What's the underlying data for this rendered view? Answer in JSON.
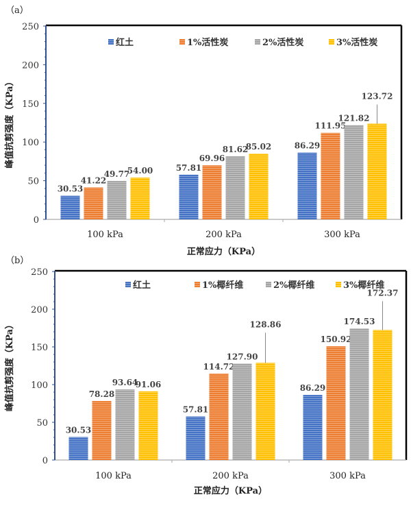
{
  "colors": {
    "红土": "#4472C4",
    "1%": "#ED7D31",
    "2%": "#A5A5A5",
    "3%": "#FFC000"
  },
  "chart_data": [
    {
      "type": "bar",
      "panel_label": "（a）",
      "categories": [
        "100 kPa",
        "200 kPa",
        "300 kPa"
      ],
      "series": [
        {
          "name": "红土",
          "values": [
            30.53,
            57.81,
            86.29
          ]
        },
        {
          "name": "1%活性炭",
          "values": [
            41.22,
            69.96,
            111.95
          ]
        },
        {
          "name": "2%活性炭",
          "values": [
            49.77,
            81.62,
            121.82
          ]
        },
        {
          "name": "3%活性炭",
          "values": [
            54.0,
            85.02,
            123.72
          ]
        }
      ],
      "data_labels": [
        [
          "30.53",
          "57.81",
          "86.29"
        ],
        [
          "41.22",
          "69.96",
          "111.95"
        ],
        [
          "49.77",
          "81.62",
          "121.82"
        ],
        [
          "54.00",
          "85.02",
          "123.72"
        ]
      ],
      "xlabel": "正常应力（KPa）",
      "ylabel": "峰值抗剪强度（KPa）",
      "ylim": [
        0,
        250
      ],
      "yticks": [
        "0",
        "50",
        "100",
        "150",
        "200",
        "250"
      ],
      "legend": "top-center",
      "grid": false
    },
    {
      "type": "bar",
      "panel_label": "（b）",
      "categories": [
        "100 kPa",
        "200 kPa",
        "300 kPa"
      ],
      "series": [
        {
          "name": "红土",
          "values": [
            30.53,
            57.81,
            86.29
          ]
        },
        {
          "name": "1%椰纤维",
          "values": [
            78.28,
            114.72,
            150.92
          ]
        },
        {
          "name": "2%椰纤维",
          "values": [
            93.64,
            127.9,
            174.53
          ]
        },
        {
          "name": "3%椰纤维",
          "values": [
            91.06,
            128.86,
            172.37
          ]
        }
      ],
      "data_labels": [
        [
          "30.53",
          "57.81",
          "86.29"
        ],
        [
          "78.28",
          "114.72",
          "150.92"
        ],
        [
          "93.64",
          "127.90",
          "174.53"
        ],
        [
          "91.06",
          "128.86",
          "172.37"
        ]
      ],
      "xlabel": "正常应力（KPa）",
      "ylabel": "峰值抗剪强度（KPa）",
      "ylim": [
        0,
        250
      ],
      "yticks": [
        "0",
        "50",
        "100",
        "150",
        "200",
        "250"
      ],
      "legend": "top-center",
      "grid": false
    }
  ]
}
